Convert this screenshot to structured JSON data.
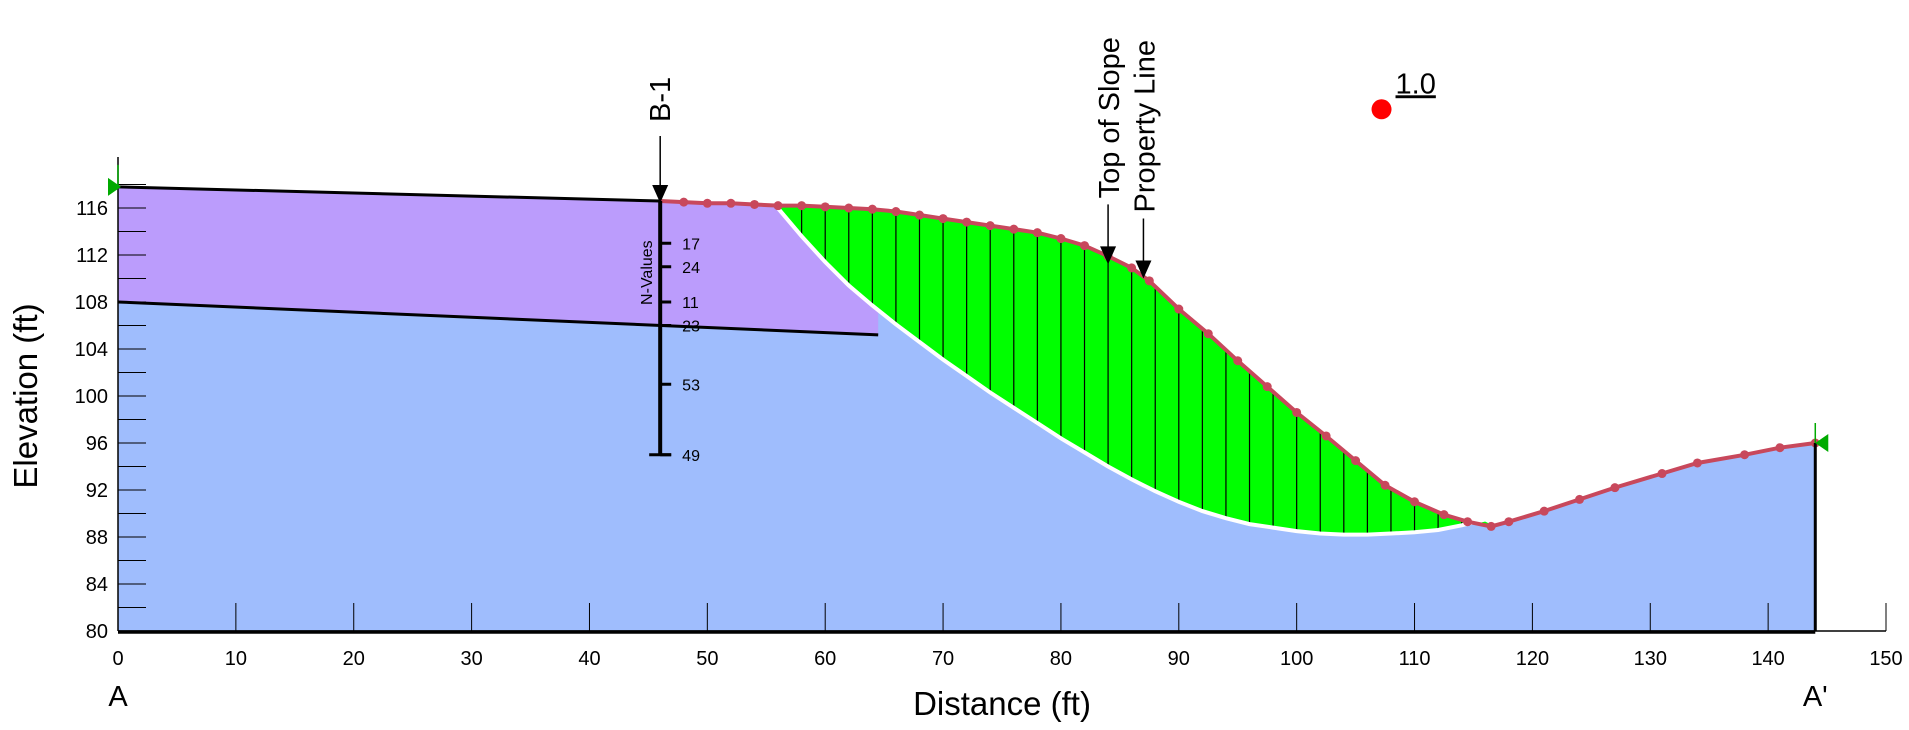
{
  "chart_data": {
    "type": "slope_stability_cross_section",
    "xlabel": "Distance (ft)",
    "ylabel": "Elevation (ft)",
    "xlim": [
      0,
      150
    ],
    "ylim": [
      80,
      120
    ],
    "x_ticks": [
      0,
      10,
      20,
      30,
      40,
      50,
      60,
      70,
      80,
      90,
      100,
      110,
      120,
      130,
      140,
      150
    ],
    "y_ticks": [
      80,
      84,
      88,
      92,
      96,
      100,
      104,
      108,
      112,
      116
    ],
    "section_start_label": "A",
    "section_end_label": "A'",
    "factor_of_safety": {
      "label": "1.0",
      "x": 107.2,
      "y": 124.4
    },
    "materials": [
      {
        "name": "upper layer",
        "color": "#bb9cfc",
        "top": [
          [
            0,
            117.8
          ],
          [
            46,
            116.6
          ]
        ],
        "bottom": [
          [
            0,
            108
          ],
          [
            64.5,
            105.2
          ]
        ]
      },
      {
        "name": "lower layer",
        "color": "#9fbdfd"
      }
    ],
    "ground_surface": [
      [
        0,
        117.8
      ],
      [
        46,
        116.6
      ],
      [
        48,
        116.5
      ],
      [
        50,
        116.4
      ],
      [
        52,
        116.4
      ],
      [
        54,
        116.3
      ],
      [
        56,
        116.2
      ],
      [
        58,
        116.2
      ],
      [
        60,
        116.1
      ],
      [
        62,
        116.0
      ],
      [
        64,
        115.9
      ],
      [
        66,
        115.7
      ],
      [
        68,
        115.4
      ],
      [
        70,
        115.1
      ],
      [
        72,
        114.8
      ],
      [
        74,
        114.5
      ],
      [
        76,
        114.2
      ],
      [
        78,
        113.9
      ],
      [
        80,
        113.4
      ],
      [
        82,
        112.8
      ],
      [
        84,
        111.9
      ],
      [
        86,
        110.9
      ],
      [
        87.5,
        109.8
      ],
      [
        90,
        107.4
      ],
      [
        92.5,
        105.3
      ],
      [
        95,
        103.0
      ],
      [
        97.5,
        100.8
      ],
      [
        100,
        98.6
      ],
      [
        102.5,
        96.6
      ],
      [
        105,
        94.5
      ],
      [
        107.5,
        92.4
      ],
      [
        110,
        91.0
      ],
      [
        112.5,
        89.9
      ],
      [
        114.5,
        89.3
      ],
      [
        116.5,
        88.9
      ],
      [
        118,
        89.3
      ],
      [
        121,
        90.2
      ],
      [
        124,
        91.2
      ],
      [
        127,
        92.2
      ],
      [
        131,
        93.4
      ],
      [
        134,
        94.3
      ],
      [
        138,
        95.0
      ],
      [
        141,
        95.6
      ],
      [
        144,
        96.0
      ]
    ],
    "slip_surface": [
      [
        55.8,
        116.2
      ],
      [
        58,
        113.6
      ],
      [
        60,
        111.4
      ],
      [
        62,
        109.4
      ],
      [
        64,
        107.7
      ],
      [
        66,
        106.1
      ],
      [
        68,
        104.6
      ],
      [
        70,
        103.1
      ],
      [
        72,
        101.7
      ],
      [
        74,
        100.3
      ],
      [
        76,
        99.0
      ],
      [
        78,
        97.7
      ],
      [
        80,
        96.4
      ],
      [
        82,
        95.2
      ],
      [
        84,
        94.0
      ],
      [
        86,
        92.9
      ],
      [
        88,
        91.9
      ],
      [
        90,
        91.0
      ],
      [
        92,
        90.2
      ],
      [
        94,
        89.6
      ],
      [
        96,
        89.1
      ],
      [
        98,
        88.8
      ],
      [
        100,
        88.5
      ],
      [
        102,
        88.3
      ],
      [
        104,
        88.2
      ],
      [
        106,
        88.2
      ],
      [
        108,
        88.3
      ],
      [
        110,
        88.4
      ],
      [
        112,
        88.6
      ],
      [
        114,
        89.0
      ],
      [
        116,
        89.5
      ],
      [
        117,
        89.0
      ]
    ],
    "boring": {
      "label": "B-1",
      "x": 46,
      "top_elevation": 116.6,
      "bottom_elevation": 95,
      "column_label": "N-Values",
      "n_values": [
        {
          "elevation": 113,
          "value": "17"
        },
        {
          "elevation": 111,
          "value": "24"
        },
        {
          "elevation": 108,
          "value": "11"
        },
        {
          "elevation": 106,
          "value": "23"
        },
        {
          "elevation": 101,
          "value": "53"
        },
        {
          "elevation": 95,
          "value": "49"
        }
      ]
    },
    "annotations": [
      {
        "text": "Top of Slope",
        "x": 84,
        "y": 111.2
      },
      {
        "text": "Property Line",
        "x": 87,
        "y": 110.0
      }
    ],
    "colors": {
      "slide_mass": "#00ff00",
      "ground_line": "#c8485c",
      "slip_line": "#ffffff",
      "fos_marker": "#ff0000",
      "end_marker": "#00aa00"
    }
  }
}
